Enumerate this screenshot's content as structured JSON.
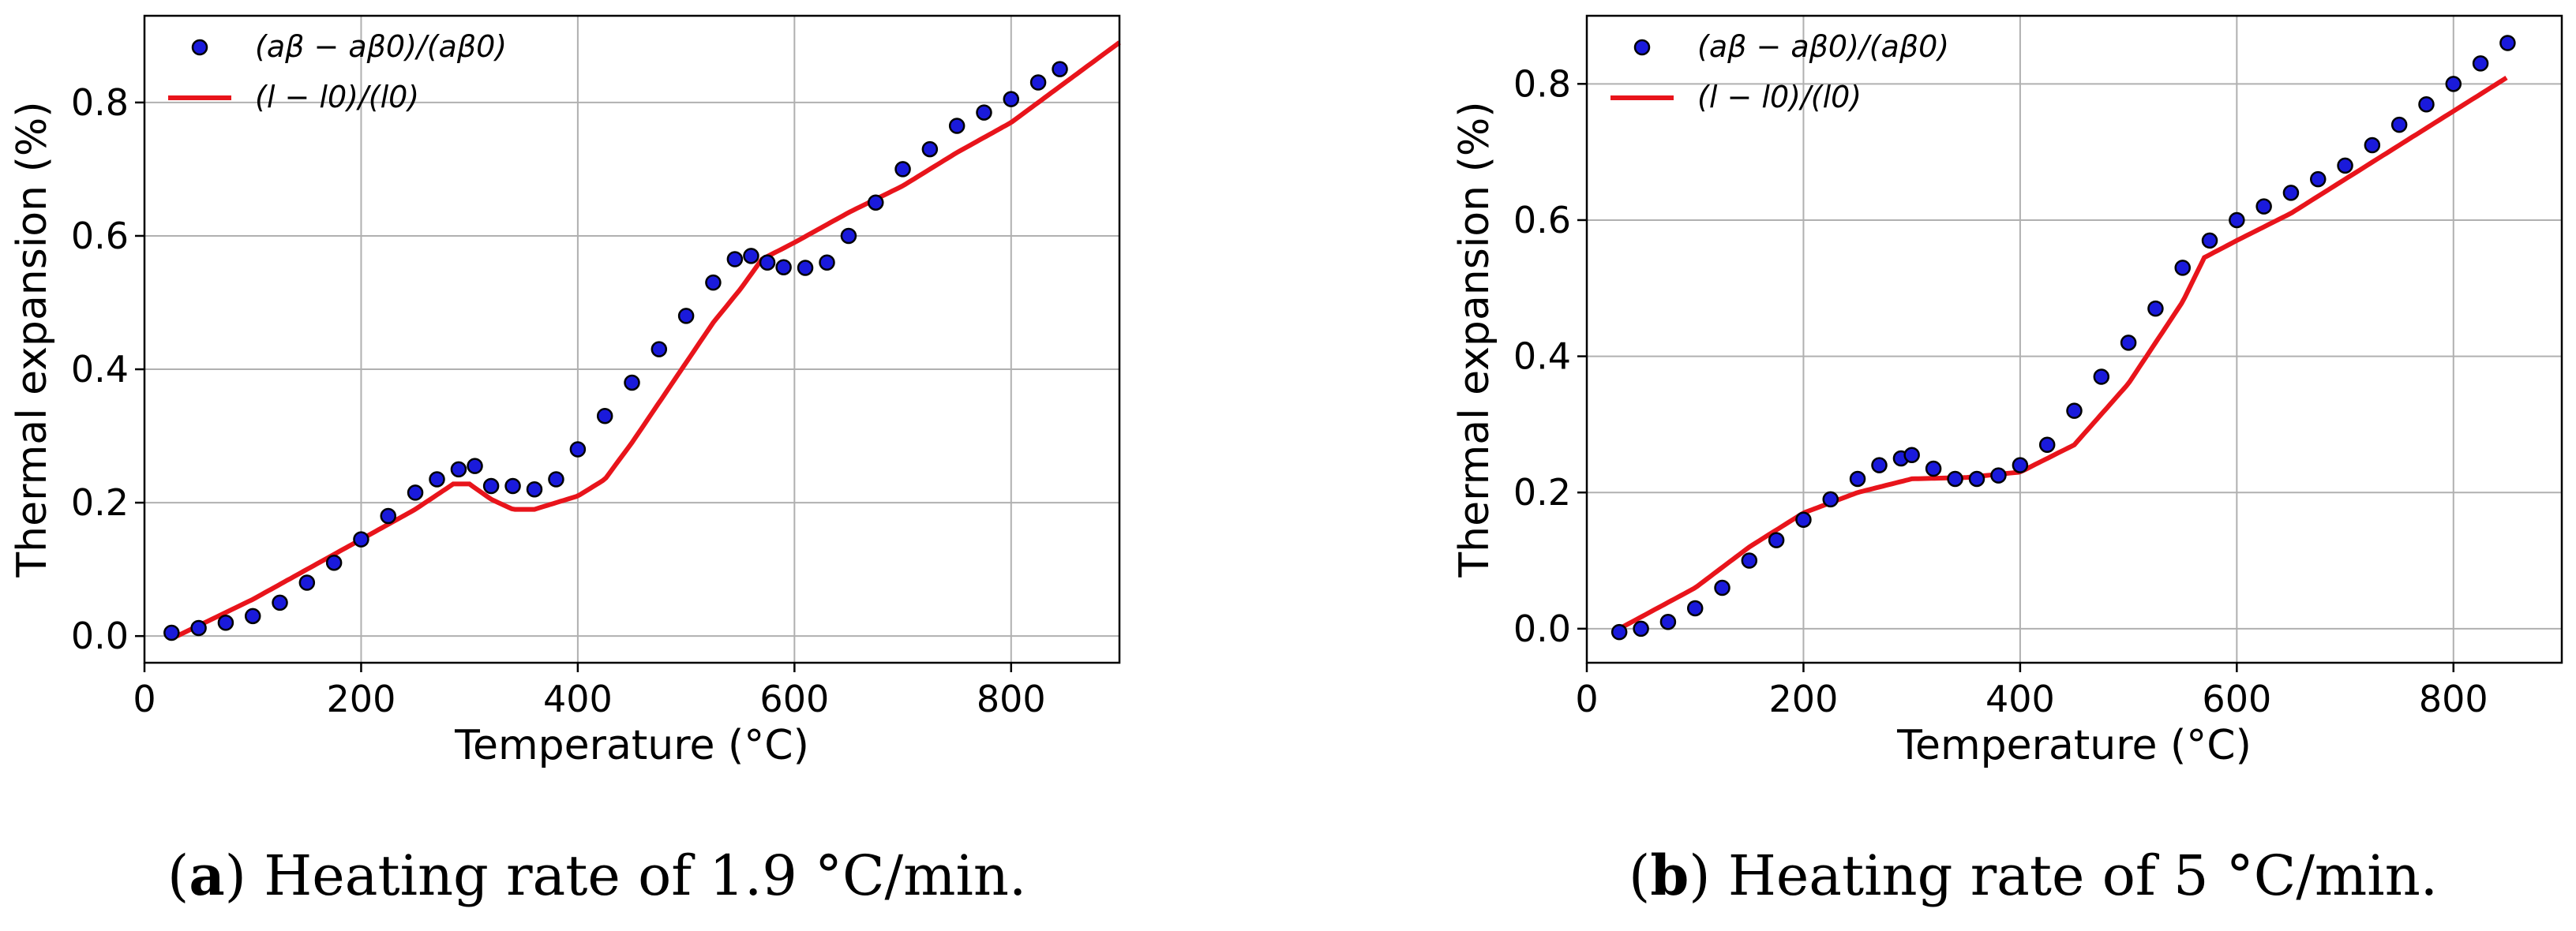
{
  "chart_data": [
    {
      "type": "scatter+line",
      "xlabel": "Temperature (°C)",
      "ylabel": "Thermal expansion (%)",
      "xlim": [
        0,
        900
      ],
      "ylim": [
        -0.04,
        0.93
      ],
      "xticks": [
        0,
        200,
        400,
        600,
        800
      ],
      "xtick_labels": [
        "0",
        "200",
        "400",
        "600",
        "800"
      ],
      "yticks": [
        0.0,
        0.2,
        0.4,
        0.6,
        0.8
      ],
      "ytick_labels": [
        "0.0",
        "0.2",
        "0.4",
        "0.6",
        "0.8"
      ],
      "grid": true,
      "legend_position": "top-left",
      "series": [
        {
          "name": "(aβ − aβ0)/(aβ0)",
          "kind": "scatter",
          "color": "#1a1adb",
          "x": [
            25,
            50,
            75,
            100,
            125,
            150,
            175,
            200,
            225,
            250,
            270,
            290,
            305,
            320,
            340,
            360,
            380,
            400,
            425,
            450,
            475,
            500,
            525,
            545,
            560,
            575,
            590,
            610,
            630,
            650,
            675,
            700,
            725,
            750,
            775,
            800,
            825,
            845
          ],
          "y": [
            0.005,
            0.012,
            0.02,
            0.03,
            0.05,
            0.08,
            0.11,
            0.145,
            0.18,
            0.215,
            0.235,
            0.25,
            0.255,
            0.225,
            0.225,
            0.22,
            0.235,
            0.28,
            0.33,
            0.38,
            0.43,
            0.48,
            0.53,
            0.565,
            0.57,
            0.56,
            0.553,
            0.552,
            0.56,
            0.6,
            0.65,
            0.7,
            0.73,
            0.765,
            0.785,
            0.805,
            0.83,
            0.85
          ]
        },
        {
          "name": "(l − l0)/(l0)",
          "kind": "line",
          "color": "#e8141b",
          "x": [
            30,
            100,
            150,
            200,
            250,
            285,
            300,
            320,
            340,
            360,
            380,
            400,
            425,
            450,
            475,
            500,
            525,
            550,
            570,
            600,
            650,
            700,
            750,
            800,
            850,
            900
          ],
          "y": [
            0.0,
            0.055,
            0.1,
            0.145,
            0.19,
            0.228,
            0.228,
            0.205,
            0.19,
            0.19,
            0.2,
            0.21,
            0.235,
            0.29,
            0.35,
            0.41,
            0.47,
            0.52,
            0.565,
            0.59,
            0.635,
            0.675,
            0.725,
            0.77,
            0.83,
            0.89
          ]
        }
      ],
      "caption_letter": "a",
      "caption_text": "Heating rate of 1.9 °C/min."
    },
    {
      "type": "scatter+line",
      "xlabel": "Temperature (°C)",
      "ylabel": "Thermal expansion (%)",
      "xlim": [
        0,
        900
      ],
      "ylim": [
        -0.05,
        0.9
      ],
      "xticks": [
        0,
        200,
        400,
        600,
        800
      ],
      "xtick_labels": [
        "0",
        "200",
        "400",
        "600",
        "800"
      ],
      "yticks": [
        0.0,
        0.2,
        0.4,
        0.6,
        0.8
      ],
      "ytick_labels": [
        "0.0",
        "0.2",
        "0.4",
        "0.6",
        "0.8"
      ],
      "grid": true,
      "legend_position": "top-left",
      "series": [
        {
          "name": "(aβ − aβ0)/(aβ0)",
          "kind": "scatter",
          "color": "#1a1adb",
          "x": [
            30,
            50,
            75,
            100,
            125,
            150,
            175,
            200,
            225,
            250,
            270,
            290,
            300,
            320,
            340,
            360,
            380,
            400,
            425,
            450,
            475,
            500,
            525,
            550,
            575,
            600,
            625,
            650,
            675,
            700,
            725,
            750,
            775,
            800,
            825,
            850
          ],
          "y": [
            -0.005,
            0.0,
            0.01,
            0.03,
            0.06,
            0.1,
            0.13,
            0.16,
            0.19,
            0.22,
            0.24,
            0.25,
            0.255,
            0.235,
            0.22,
            0.22,
            0.225,
            0.24,
            0.27,
            0.32,
            0.37,
            0.42,
            0.47,
            0.53,
            0.57,
            0.6,
            0.62,
            0.64,
            0.66,
            0.68,
            0.71,
            0.74,
            0.77,
            0.8,
            0.83,
            0.86
          ]
        },
        {
          "name": "(l − l0)/(l0)",
          "kind": "line",
          "color": "#e8141b",
          "x": [
            30,
            100,
            150,
            200,
            250,
            300,
            350,
            400,
            450,
            500,
            550,
            570,
            600,
            650,
            700,
            750,
            800,
            850
          ],
          "y": [
            0.0,
            0.06,
            0.12,
            0.17,
            0.2,
            0.22,
            0.222,
            0.23,
            0.27,
            0.36,
            0.48,
            0.545,
            0.57,
            0.61,
            0.66,
            0.71,
            0.76,
            0.81
          ]
        }
      ],
      "caption_letter": "b",
      "caption_text": "Heating rate of 5 °C/min."
    }
  ],
  "colors": {
    "scatter_fill": "#1a1adb",
    "scatter_edge": "#000000",
    "line": "#e8141b",
    "grid": "#b0b0b0"
  }
}
